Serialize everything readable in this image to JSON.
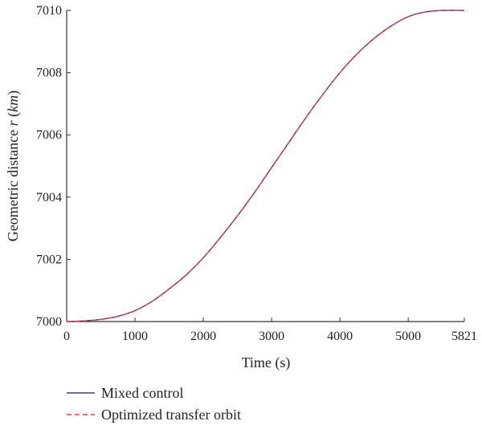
{
  "chart_data": {
    "type": "line",
    "title": "",
    "xlabel": "Time (s)",
    "ylabel_prefix": "Geometric distance ",
    "ylabel_var": "r",
    "ylabel_unit": "(km)",
    "xlim": [
      0,
      5821
    ],
    "ylim": [
      7000,
      7010
    ],
    "xticks": [
      0,
      1000,
      2000,
      3000,
      4000,
      5000,
      5821
    ],
    "yticks": [
      7000,
      7002,
      7004,
      7006,
      7008,
      7010
    ],
    "xtick_labels": [
      "0",
      "1000",
      "2000",
      "3000",
      "4000",
      "5000",
      "5821"
    ],
    "ytick_labels": [
      "7000",
      "7002",
      "7004",
      "7006",
      "7008",
      "7010"
    ],
    "grid": false,
    "legend_position": "bottom-left",
    "x": [
      0,
      250,
      500,
      750,
      1000,
      1250,
      1500,
      1750,
      2000,
      2250,
      2500,
      2750,
      3000,
      3250,
      3500,
      3750,
      4000,
      4250,
      4500,
      4750,
      5000,
      5250,
      5500,
      5821
    ],
    "series": [
      {
        "name": "Mixed control",
        "color": "#3a3a9e",
        "dash": "solid",
        "values": [
          7000.0,
          7000.02,
          7000.07,
          7000.17,
          7000.35,
          7000.65,
          7001.05,
          7001.5,
          7002.05,
          7002.7,
          7003.4,
          7004.15,
          7004.95,
          7005.75,
          7006.55,
          7007.3,
          7008.0,
          7008.6,
          7009.1,
          7009.5,
          7009.8,
          7009.95,
          7010.0,
          7010.0
        ]
      },
      {
        "name": "Optimized transfer orbit",
        "color": "#e8413a",
        "dash": "dashed",
        "values": [
          7000.0,
          7000.02,
          7000.07,
          7000.17,
          7000.35,
          7000.65,
          7001.05,
          7001.5,
          7002.05,
          7002.7,
          7003.4,
          7004.15,
          7004.95,
          7005.75,
          7006.55,
          7007.3,
          7008.0,
          7008.6,
          7009.1,
          7009.5,
          7009.8,
          7009.95,
          7010.0,
          7010.0
        ]
      }
    ]
  }
}
